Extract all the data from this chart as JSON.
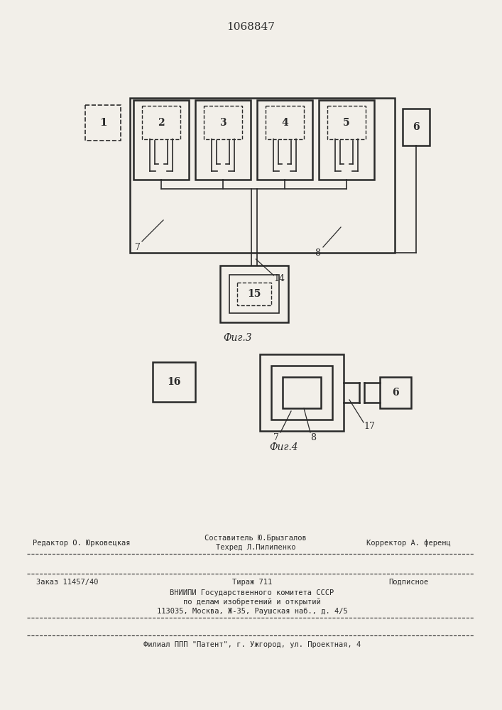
{
  "title": "1068847",
  "fig3_label": "Фиг.3",
  "fig4_label": "Фиг.4",
  "bg_color": "#f2efe9",
  "line_color": "#2a2a2a",
  "lw_main": 1.8,
  "lw_thin": 1.2,
  "lw_dash": 1.0
}
